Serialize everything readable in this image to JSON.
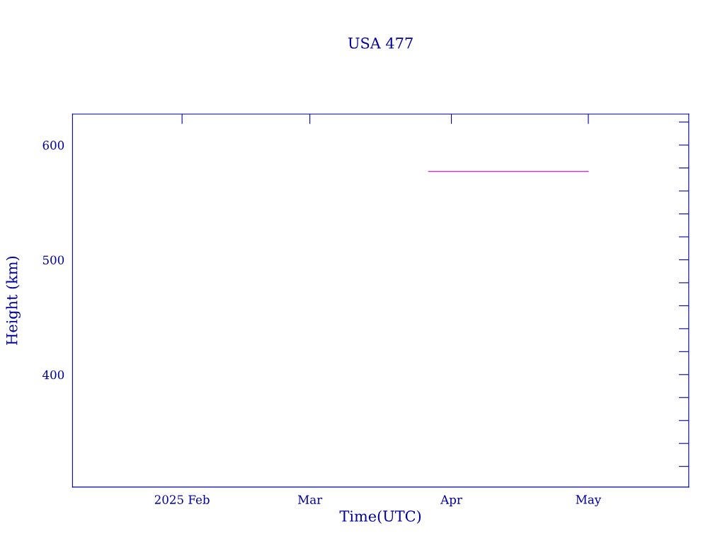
{
  "chart_data": {
    "type": "line",
    "title": "USA 477",
    "xlabel": "Time(UTC)",
    "ylabel": "Height (km)",
    "xlim": [
      "2025-01-08",
      "2025-05-23"
    ],
    "xticks": [
      {
        "value": "2025-02-01",
        "label": "2025 Feb"
      },
      {
        "value": "2025-03-01",
        "label": "Mar"
      },
      {
        "value": "2025-04-01",
        "label": "Apr"
      },
      {
        "value": "2025-05-01",
        "label": "May"
      }
    ],
    "ylim": [
      302,
      627
    ],
    "yticks": [
      {
        "value": 320,
        "label": null
      },
      {
        "value": 340,
        "label": null
      },
      {
        "value": 360,
        "label": null
      },
      {
        "value": 380,
        "label": null
      },
      400,
      {
        "value": 420,
        "label": null
      },
      {
        "value": 440,
        "label": null
      },
      {
        "value": 460,
        "label": null
      },
      {
        "value": 480,
        "label": null
      },
      500,
      {
        "value": 520,
        "label": null
      },
      {
        "value": 540,
        "label": null
      },
      {
        "value": 560,
        "label": null
      },
      {
        "value": 580,
        "label": null
      },
      600,
      {
        "value": 620,
        "label": null
      }
    ],
    "series": [
      {
        "color": "#c040c0",
        "x": [
          "2025-03-27",
          "2025-05-01"
        ],
        "values": [
          577,
          577
        ]
      }
    ],
    "grid": false,
    "legend": false
  }
}
